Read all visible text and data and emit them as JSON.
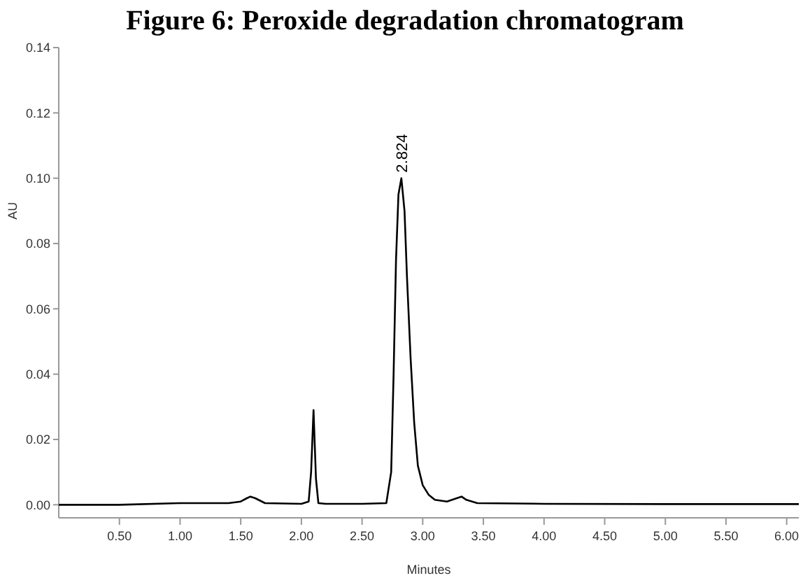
{
  "chart_data": {
    "type": "line",
    "title": "Figure 6:  Peroxide degradation chromatogram",
    "xlabel": "Minutes",
    "ylabel": "AU",
    "series": [
      {
        "color": "#000000",
        "x": [
          0,
          0.5,
          1.0,
          1.4,
          1.5,
          1.55,
          1.58,
          1.62,
          1.7,
          2.0,
          2.06,
          2.08,
          2.1,
          2.12,
          2.14,
          2.2,
          2.5,
          2.7,
          2.74,
          2.76,
          2.78,
          2.8,
          2.824,
          2.85,
          2.87,
          2.9,
          2.93,
          2.96,
          3.0,
          3.05,
          3.1,
          3.2,
          3.28,
          3.32,
          3.36,
          3.45,
          4.0,
          5.0,
          6.1
        ],
        "values": [
          0,
          0,
          0.0005,
          0.0005,
          0.001,
          0.002,
          0.0025,
          0.002,
          0.0005,
          0.0003,
          0.001,
          0.01,
          0.029,
          0.008,
          0.0005,
          0.0003,
          0.0003,
          0.0005,
          0.01,
          0.04,
          0.075,
          0.095,
          0.1,
          0.09,
          0.07,
          0.045,
          0.025,
          0.012,
          0.006,
          0.003,
          0.0015,
          0.001,
          0.002,
          0.0025,
          0.0015,
          0.0005,
          0.0003,
          0.0002,
          0.0002
        ]
      }
    ],
    "annotations": [
      {
        "text": "2.824",
        "x": 2.824,
        "y": 0.1
      }
    ],
    "xlim": [
      0,
      6.1
    ],
    "ylim": [
      -0.004,
      0.14
    ],
    "xticks": [
      {
        "value": 0.5,
        "label": "0.50"
      },
      {
        "value": 1,
        "label": "1.00"
      },
      {
        "value": 1.5,
        "label": "1.50"
      },
      {
        "value": 2,
        "label": "2.00"
      },
      {
        "value": 2.5,
        "label": "2.50"
      },
      {
        "value": 3,
        "label": "3.00"
      },
      {
        "value": 3.5,
        "label": "3.50"
      },
      {
        "value": 4,
        "label": "4.00"
      },
      {
        "value": 4.5,
        "label": "4.50"
      },
      {
        "value": 5,
        "label": "5.00"
      },
      {
        "value": 5.5,
        "label": "5.50"
      },
      {
        "value": 6,
        "label": "6.00"
      }
    ],
    "yticks": [
      {
        "value": 0,
        "label": "0.00"
      },
      {
        "value": 0.02,
        "label": "0.02"
      },
      {
        "value": 0.04,
        "label": "0.04"
      },
      {
        "value": 0.06,
        "label": "0.06"
      },
      {
        "value": 0.08,
        "label": "0.08"
      },
      {
        "value": 0.1,
        "label": "0.10"
      },
      {
        "value": 0.12,
        "label": "0.12"
      },
      {
        "value": 0.14,
        "label": "0.14"
      }
    ],
    "grid": false,
    "marker": "none",
    "line_style": "solid"
  }
}
